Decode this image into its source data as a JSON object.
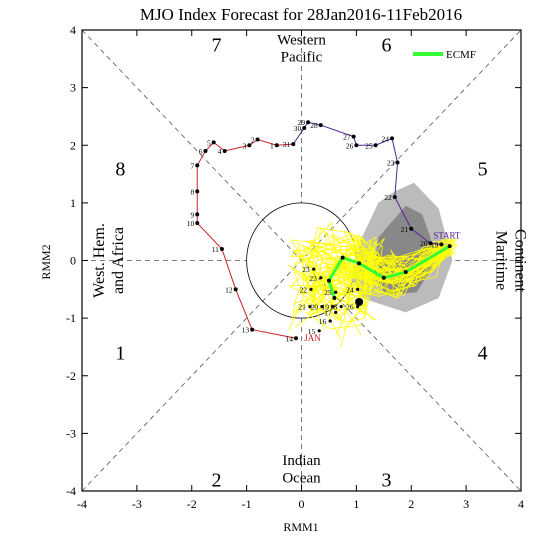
{
  "chart_data": {
    "type": "scatter",
    "title": "MJO Index Forecast for 28Jan2016-11Feb2016",
    "xlabel": "RMM1",
    "ylabel": "RMM2",
    "xlim": [
      -4,
      4
    ],
    "ylim": [
      -4,
      4
    ],
    "xticks": [
      -4,
      -3,
      -2,
      -1,
      0,
      1,
      2,
      3,
      4
    ],
    "yticks": [
      -4,
      -3,
      -2,
      -1,
      0,
      1,
      2,
      3,
      4
    ],
    "grid": false,
    "legend_position": "top-right",
    "legend": [
      {
        "name": "ECMF",
        "color": "#33ff33"
      }
    ],
    "phases": [
      {
        "label": "1",
        "x": -3.3,
        "y": -1.6
      },
      {
        "label": "2",
        "x": -1.55,
        "y": -3.8
      },
      {
        "label": "3",
        "x": 1.55,
        "y": -3.8
      },
      {
        "label": "4",
        "x": 3.3,
        "y": -1.6
      },
      {
        "label": "5",
        "x": 3.3,
        "y": 1.6
      },
      {
        "label": "6",
        "x": 1.55,
        "y": 3.75
      },
      {
        "label": "7",
        "x": -1.55,
        "y": 3.75
      },
      {
        "label": "8",
        "x": -3.3,
        "y": 1.6
      }
    ],
    "region_labels": {
      "top": [
        "Western",
        "Pacific"
      ],
      "bottom": [
        "Indian",
        "Ocean"
      ],
      "left": [
        "West. Hem.",
        "and Africa"
      ],
      "right": [
        "Maritime",
        "Continent"
      ]
    },
    "annotations": {
      "start": "START",
      "jan": "JAN"
    },
    "colors": {
      "observed_jan": "#cc2222",
      "observed_start": "#552299",
      "ensemble": "#ffff00",
      "ensemble_mean": "#33ff33",
      "spread_outer": "#bbbbbb",
      "spread_inner": "#888888"
    },
    "observed_jan": [
      {
        "day": "14",
        "x": -0.1,
        "y": -1.35
      },
      {
        "day": "13",
        "x": -0.9,
        "y": -1.2
      },
      {
        "day": "12",
        "x": -1.2,
        "y": -0.5
      },
      {
        "day": "11",
        "x": -1.45,
        "y": 0.2
      },
      {
        "day": "10",
        "x": -1.9,
        "y": 0.65
      },
      {
        "day": "9",
        "x": -1.9,
        "y": 0.8
      },
      {
        "day": "8",
        "x": -1.9,
        "y": 1.2
      },
      {
        "day": "7",
        "x": -1.9,
        "y": 1.65
      },
      {
        "day": "6",
        "x": -1.75,
        "y": 1.9
      },
      {
        "day": "5",
        "x": -1.6,
        "y": 2.05
      },
      {
        "day": "4",
        "x": -1.4,
        "y": 1.9
      },
      {
        "day": "3",
        "x": -0.95,
        "y": 2.0
      },
      {
        "day": "2",
        "x": -0.8,
        "y": 2.1
      },
      {
        "day": "1",
        "x": -0.45,
        "y": 2.0
      },
      {
        "day": "31",
        "x": -0.15,
        "y": 2.02
      },
      {
        "day": "30",
        "x": 0.05,
        "y": 2.3
      },
      {
        "day": "29",
        "x": 0.12,
        "y": 2.4
      },
      {
        "day": "28",
        "x": 0.35,
        "y": 2.35
      },
      {
        "day": "27",
        "x": 0.95,
        "y": 2.15
      },
      {
        "day": "26",
        "x": 1.0,
        "y": 2.0
      },
      {
        "day": "25",
        "x": 1.35,
        "y": 2.0
      },
      {
        "day": "24",
        "x": 1.65,
        "y": 2.12
      },
      {
        "day": "23",
        "x": 1.75,
        "y": 1.7
      },
      {
        "day": "22",
        "x": 1.7,
        "y": 1.1
      },
      {
        "day": "21",
        "x": 2.0,
        "y": 0.55
      },
      {
        "day": "20",
        "x": 2.35,
        "y": 0.3
      },
      {
        "day": "19",
        "x": 2.55,
        "y": 0.28
      }
    ],
    "observed_path_order": "start at day 14 (JAN) then continue through day 19",
    "ensemble_mean": [
      {
        "x": 2.7,
        "y": 0.25
      },
      {
        "x": 1.9,
        "y": -0.2
      },
      {
        "x": 1.5,
        "y": -0.3
      },
      {
        "x": 1.05,
        "y": -0.05
      },
      {
        "x": 0.75,
        "y": 0.05
      },
      {
        "x": 0.5,
        "y": -0.35
      },
      {
        "x": 0.6,
        "y": -0.65
      }
    ],
    "ensemble_end": {
      "x": 1.05,
      "y": -0.72
    },
    "forecast_days": [
      {
        "day": "23",
        "x": 0.15,
        "y": -0.15
      },
      {
        "day": "23",
        "x": 0.28,
        "y": -0.3
      },
      {
        "day": "22",
        "x": 0.1,
        "y": -0.5
      },
      {
        "day": "25",
        "x": 0.55,
        "y": -0.55
      },
      {
        "day": "24",
        "x": 0.95,
        "y": -0.5
      },
      {
        "day": "21",
        "x": 0.08,
        "y": -0.8
      },
      {
        "day": "20",
        "x": 0.3,
        "y": -0.8
      },
      {
        "day": "19",
        "x": 0.5,
        "y": -0.8
      },
      {
        "day": "18",
        "x": 0.65,
        "y": -0.8
      },
      {
        "day": "26",
        "x": 0.95,
        "y": -0.8
      },
      {
        "day": "17",
        "x": 0.55,
        "y": -0.9
      },
      {
        "day": "16",
        "x": 0.45,
        "y": -1.05
      },
      {
        "day": "15",
        "x": 0.25,
        "y": -1.22
      }
    ]
  }
}
